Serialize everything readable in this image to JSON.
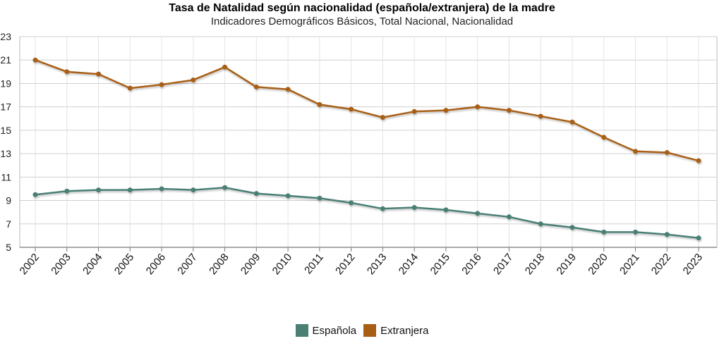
{
  "chart_data": {
    "type": "line",
    "title": "Tasa de Natalidad según nacionalidad (española/extranjera) de la madre",
    "subtitle": "Indicadores Demográficos Básicos, Total Nacional, Nacionalidad",
    "xlabel": "",
    "ylabel": "",
    "ylim": [
      5,
      23
    ],
    "yticks": [
      5,
      7,
      9,
      11,
      13,
      15,
      17,
      19,
      21,
      23
    ],
    "grid": true,
    "legend_position": "bottom-center",
    "categories": [
      "2002",
      "2003",
      "2004",
      "2005",
      "2006",
      "2007",
      "2008",
      "2009",
      "2010",
      "2011",
      "2012",
      "2013",
      "2014",
      "2015",
      "2016",
      "2017",
      "2018",
      "2019",
      "2020",
      "2021",
      "2022",
      "2023"
    ],
    "series": [
      {
        "name": "Española",
        "color": "#4a7f74",
        "values": [
          9.5,
          9.8,
          9.9,
          9.9,
          10.0,
          9.9,
          10.1,
          9.6,
          9.4,
          9.2,
          8.8,
          8.3,
          8.4,
          8.2,
          7.9,
          7.6,
          7.0,
          6.7,
          6.3,
          6.3,
          6.1,
          5.8
        ]
      },
      {
        "name": "Extranjera",
        "color": "#a85e14",
        "values": [
          21.0,
          20.0,
          19.8,
          18.6,
          18.9,
          19.3,
          20.4,
          18.7,
          18.5,
          17.2,
          16.8,
          16.1,
          16.6,
          16.7,
          17.0,
          16.7,
          16.2,
          15.7,
          14.4,
          13.2,
          13.1,
          12.4
        ]
      }
    ]
  }
}
